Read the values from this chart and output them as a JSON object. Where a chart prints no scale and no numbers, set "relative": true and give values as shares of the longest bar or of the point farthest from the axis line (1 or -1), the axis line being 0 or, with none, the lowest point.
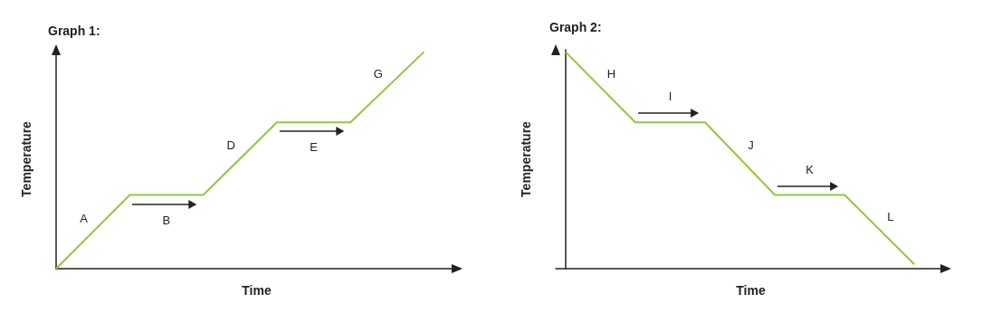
{
  "chart_data": [
    {
      "type": "line",
      "title": "Graph 1:",
      "xlabel": "Time",
      "ylabel": "Temperature",
      "relative": true,
      "categories": [
        null,
        null,
        null,
        null,
        null,
        null
      ],
      "series": [
        {
          "color": "#92c83e",
          "values": [
            0,
            0.34,
            0.34,
            0.675,
            0.675,
            1
          ]
        }
      ],
      "annotations": [
        "A",
        "B",
        "D",
        "E",
        "G"
      ]
    },
    {
      "type": "line",
      "title": "Graph 2:",
      "xlabel": "Time",
      "ylabel": "Temperature",
      "relative": true,
      "categories": [
        null,
        null,
        null,
        null,
        null,
        null
      ],
      "series": [
        {
          "color": "#92c83e",
          "values": [
            1,
            0.675,
            0.675,
            0.34,
            0.34,
            0.02
          ]
        }
      ],
      "annotations": [
        "H",
        "I",
        "J",
        "K",
        "L"
      ]
    }
  ]
}
